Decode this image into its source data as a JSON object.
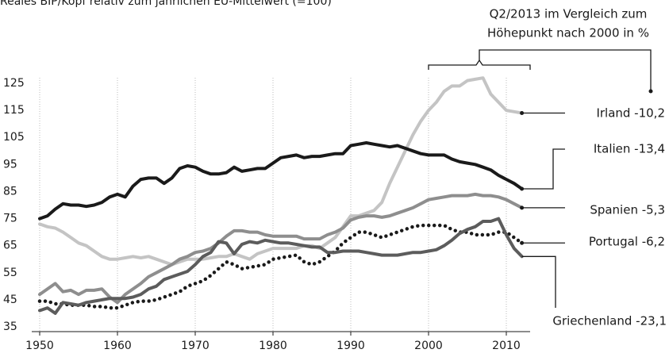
{
  "chart_data": {
    "type": "line",
    "title": "Reales BIP/Kopf relativ zum jährlichen EU-Mittelwert (=100)",
    "annotation": "Q2/2013 im Vergleich zum Höhepunkt nach 2000 in %",
    "x": [
      1950,
      1951,
      1952,
      1953,
      1954,
      1955,
      1956,
      1957,
      1958,
      1959,
      1960,
      1961,
      1962,
      1963,
      1964,
      1965,
      1966,
      1967,
      1968,
      1969,
      1970,
      1971,
      1972,
      1973,
      1974,
      1975,
      1976,
      1977,
      1978,
      1979,
      1980,
      1981,
      1982,
      1983,
      1984,
      1985,
      1986,
      1987,
      1988,
      1989,
      1990,
      1991,
      1992,
      1993,
      1994,
      1995,
      1996,
      1997,
      1998,
      1999,
      2000,
      2001,
      2002,
      2003,
      2004,
      2005,
      2006,
      2007,
      2008,
      2009,
      2010,
      2011,
      2012
    ],
    "series": [
      {
        "name": "Irland -10,2",
        "color": "#c4c4c4",
        "dash": false,
        "values": [
          73,
          72,
          71.5,
          70,
          68,
          66,
          65,
          63,
          61,
          60,
          60,
          60.5,
          61,
          60.5,
          61,
          60,
          59,
          58,
          59,
          60,
          60,
          60,
          60.5,
          61,
          61,
          62,
          61,
          60,
          62,
          63,
          64,
          64,
          64,
          64,
          65,
          65,
          64,
          66,
          68,
          72,
          76,
          76,
          77,
          78,
          81,
          88,
          94,
          100,
          106,
          111,
          115,
          118,
          122,
          124,
          124,
          126,
          126.5,
          127,
          121,
          118,
          115,
          114.5,
          114
        ]
      },
      {
        "name": "Italien -13,4",
        "color": "#1a1a1a",
        "dash": false,
        "values": [
          75,
          76,
          78.5,
          80.5,
          80,
          80,
          79.5,
          80,
          81,
          83,
          84,
          83,
          87,
          89.5,
          90,
          90,
          88,
          90,
          93.5,
          94.5,
          94,
          92.5,
          91.5,
          91.5,
          92,
          94,
          92.5,
          93,
          93.5,
          93.5,
          95.5,
          97.5,
          98,
          98.5,
          97.5,
          98,
          98,
          98.5,
          99,
          99,
          102,
          102.5,
          103,
          102.5,
          102,
          101.5,
          102,
          101,
          100,
          99,
          98.5,
          98.5,
          98.5,
          97,
          96,
          95.5,
          95,
          94,
          93,
          91,
          89.5,
          88,
          86
        ]
      },
      {
        "name": "Spanien -5,3",
        "color": "#8e8e8e",
        "dash": false,
        "values": [
          47,
          49,
          51,
          48,
          48.5,
          47,
          48.5,
          48.5,
          49,
          46,
          44,
          47,
          49,
          51,
          53.5,
          55,
          56.5,
          58,
          60,
          61,
          62.5,
          63,
          64,
          66,
          68.5,
          70.5,
          70.5,
          70,
          70,
          69,
          68.5,
          68.5,
          68.5,
          68.5,
          67.5,
          67.5,
          67.5,
          69,
          70,
          71.5,
          74.5,
          75.5,
          76,
          76,
          75.5,
          76,
          77,
          78,
          79,
          80.5,
          82,
          82.5,
          83,
          83.5,
          83.5,
          83.5,
          84,
          83.5,
          83.5,
          83,
          82,
          80.5,
          79
        ]
      },
      {
        "name": "Portugal -6,2",
        "color": "#1a1a1a",
        "dash": true,
        "values": [
          44.5,
          44.5,
          43.5,
          43.5,
          43,
          43,
          43,
          42.5,
          42.5,
          42,
          42,
          43,
          44,
          44.5,
          44.5,
          45,
          46,
          47,
          48,
          50,
          51,
          52,
          54,
          56.5,
          59,
          58,
          56.5,
          57,
          57.5,
          58,
          60,
          60.5,
          61,
          61.5,
          59,
          58,
          59,
          61,
          63,
          66,
          68,
          70,
          70,
          69,
          68,
          69,
          70,
          71,
          72,
          72.5,
          72.5,
          72.5,
          72.5,
          71,
          70,
          70,
          69,
          69,
          69,
          70,
          70,
          68,
          66
        ]
      },
      {
        "name": "Griechenland -23,1",
        "color": "#5c5c5c",
        "dash": false,
        "values": [
          41,
          42,
          40,
          44,
          43.5,
          43,
          44,
          44.5,
          45,
          45.5,
          45.5,
          45.5,
          46,
          47,
          49,
          50,
          52.5,
          53.5,
          54.5,
          55.5,
          58,
          61,
          62.5,
          66.5,
          66,
          62,
          65.5,
          66.5,
          66,
          67,
          66.5,
          66,
          66,
          65.5,
          65,
          64.5,
          64.5,
          62.5,
          62.5,
          63,
          63,
          63,
          62.5,
          62,
          61.5,
          61.5,
          61.5,
          62,
          62.5,
          62.5,
          63,
          63.5,
          65,
          67,
          69.5,
          71,
          72,
          74,
          74,
          75,
          69,
          64,
          61
        ]
      }
    ],
    "xlim": [
      1950,
      2012
    ],
    "xticks": [
      1950,
      1960,
      1970,
      1980,
      1990,
      2000,
      2010
    ],
    "ylim": [
      35,
      125
    ],
    "yticks": [
      35,
      45,
      55,
      65,
      75,
      85,
      95,
      105,
      115,
      125
    ],
    "grid": "x"
  }
}
